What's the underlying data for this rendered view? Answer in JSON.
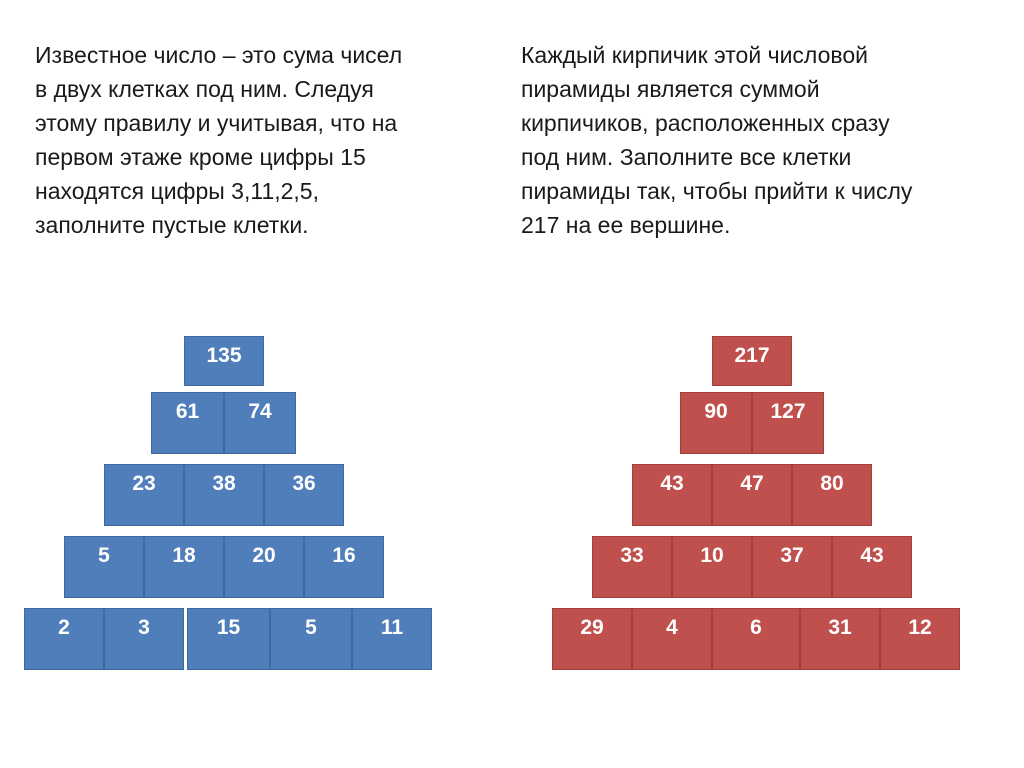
{
  "left_task": {
    "lines": [
      "Известное число – это сума чисел",
      "в двух клетках под ним. Следуя",
      "этому правилу и учитывая, что на",
      "первом этаже кроме цифры 15",
      "находятся цифры 3,11,2,5,",
      "заполните пустые клетки."
    ]
  },
  "right_task": {
    "lines": [
      "Каждый кирпичик этой числовой",
      "пирамиды является суммой",
      "кирпичиков, расположенных сразу",
      "под ним. Заполните все клетки",
      "пирамиды так, чтобы прийти к числу",
      "217 на ее вершине."
    ]
  },
  "blue_pyramid": {
    "color": "#4f7ebb",
    "rows": [
      [
        "135"
      ],
      [
        "61",
        "74"
      ],
      [
        "23",
        "38",
        "36"
      ],
      [
        "5",
        "18",
        "20",
        "16"
      ],
      [
        "2",
        "3",
        "15",
        "5",
        "11"
      ]
    ]
  },
  "red_pyramid": {
    "color": "#c0504d",
    "rows": [
      [
        "217"
      ],
      [
        "90",
        "127"
      ],
      [
        "43",
        "47",
        "80"
      ],
      [
        "33",
        "10",
        "37",
        "43"
      ],
      [
        "29",
        "4",
        "6",
        "31",
        "12"
      ]
    ]
  }
}
